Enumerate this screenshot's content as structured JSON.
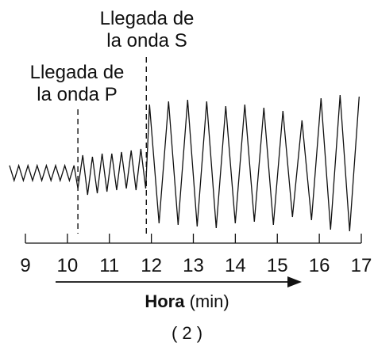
{
  "labels": {
    "s_wave_line1": "Llegada de",
    "s_wave_line2": "la onda S",
    "p_wave_line1": "Llegada de",
    "p_wave_line2": "la onda P"
  },
  "axis": {
    "ticks": [
      "9",
      "10",
      "11",
      "12",
      "13",
      "14",
      "15",
      "16",
      "17"
    ],
    "min": 9,
    "max": 17,
    "xlabel_bold": "Hora",
    "xlabel_unit": "(min)"
  },
  "events": {
    "p_arrival_min": 10.25,
    "s_arrival_min": 11.88
  },
  "caption": "( 2 )"
}
